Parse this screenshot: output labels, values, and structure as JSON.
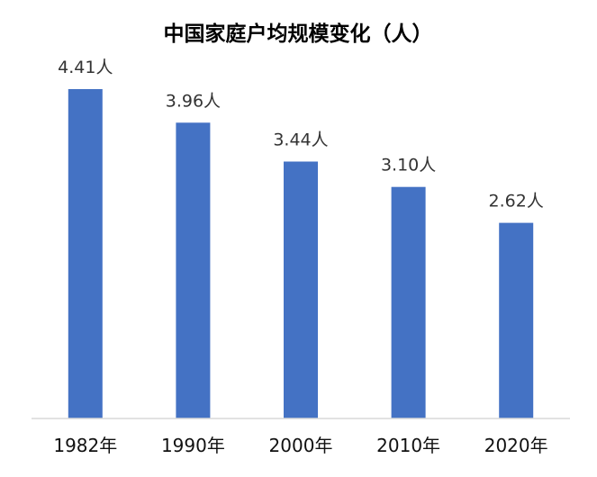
{
  "chart_data": {
    "type": "bar",
    "title": "中国家庭户均规模变化（人）",
    "categories": [
      "1982年",
      "1990年",
      "2000年",
      "2010年",
      "2020年"
    ],
    "values": [
      4.41,
      3.96,
      3.44,
      3.1,
      2.62
    ],
    "data_labels": [
      "4.41人",
      "3.96人",
      "3.44人",
      "3.10人",
      "2.62人"
    ],
    "xlabel": "",
    "ylabel": "",
    "ylim": [
      0,
      4.5
    ],
    "grid": false,
    "legend": "none",
    "bar_color": "#4472C4"
  }
}
